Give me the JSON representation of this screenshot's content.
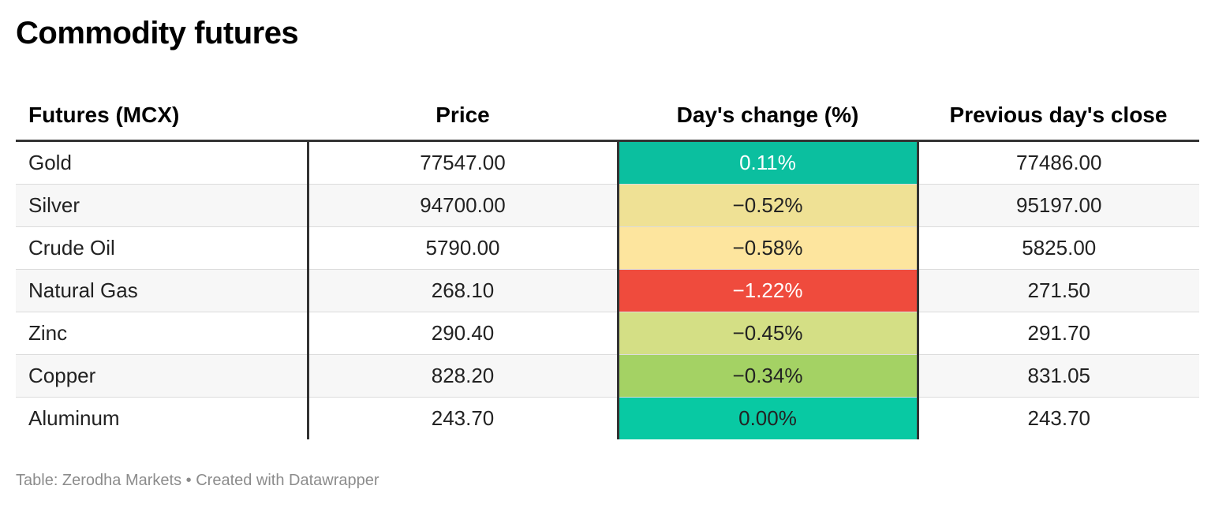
{
  "title": "Commodity futures",
  "headers": [
    "Futures (MCX)",
    "Price",
    "Day's change (%)",
    "Previous day's close"
  ],
  "rows": [
    {
      "name": "Gold",
      "price": "77547.00",
      "change": "0.11%",
      "prev_close": "77486.00",
      "color": "#0bbf9f",
      "text_color": "#ffffff"
    },
    {
      "name": "Silver",
      "price": "94700.00",
      "change": "−0.52%",
      "prev_close": "95197.00",
      "color": "#efe195",
      "text_color": "#222222"
    },
    {
      "name": "Crude Oil",
      "price": "5790.00",
      "change": "−0.58%",
      "prev_close": "5825.00",
      "color": "#fde59e",
      "text_color": "#222222"
    },
    {
      "name": "Natural Gas",
      "price": "268.10",
      "change": "−1.22%",
      "prev_close": "271.50",
      "color": "#ef4b3d",
      "text_color": "#ffffff"
    },
    {
      "name": "Zinc",
      "price": "290.40",
      "change": "−0.45%",
      "prev_close": "291.70",
      "color": "#d4df85",
      "text_color": "#222222"
    },
    {
      "name": "Copper",
      "price": "828.20",
      "change": "−0.34%",
      "prev_close": "831.05",
      "color": "#a4d264",
      "text_color": "#222222"
    },
    {
      "name": "Aluminum",
      "price": "243.70",
      "change": "0.00%",
      "prev_close": "243.70",
      "color": "#08c9a3",
      "text_color": "#222222"
    }
  ],
  "chart_data": {
    "type": "table",
    "title": "Commodity futures",
    "columns": [
      "Futures (MCX)",
      "Price",
      "Day's change (%)",
      "Previous day's close"
    ],
    "rows": [
      [
        "Gold",
        77547.0,
        0.11,
        77486.0
      ],
      [
        "Silver",
        94700.0,
        -0.52,
        95197.0
      ],
      [
        "Crude Oil",
        5790.0,
        -0.58,
        5825.0
      ],
      [
        "Natural Gas",
        268.1,
        -1.22,
        271.5
      ],
      [
        "Zinc",
        290.4,
        -0.45,
        291.7
      ],
      [
        "Copper",
        828.2,
        -0.34,
        831.05
      ],
      [
        "Aluminum",
        243.7,
        0.0,
        243.7
      ]
    ]
  },
  "footer": "Table: Zerodha Markets • Created with Datawrapper"
}
